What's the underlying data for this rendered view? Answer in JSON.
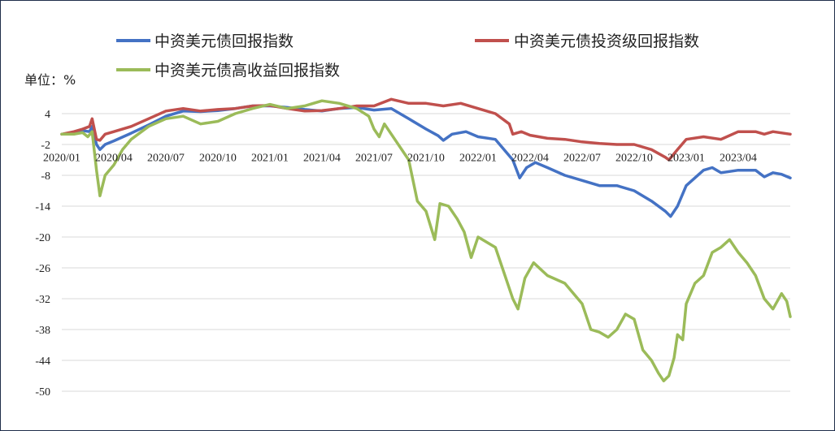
{
  "chart_data": {
    "type": "line",
    "title": "",
    "unit_label": "单位：%",
    "ylim": [
      -50,
      4
    ],
    "yticks": [
      4,
      -2,
      -8,
      -14,
      -20,
      -26,
      -32,
      -38,
      -44,
      -50
    ],
    "ytick_labels": [
      "4",
      "-2",
      "-8",
      "-14",
      "-20",
      "-26",
      "-32",
      "-38",
      "-44",
      "-50"
    ],
    "xlim": [
      "2020-01",
      "2023-06"
    ],
    "xtick_labels": [
      "2020/01",
      "2020/04",
      "2020/07",
      "2020/10",
      "2021/01",
      "2021/04",
      "2021/07",
      "2021/10",
      "2022/01",
      "2022/04",
      "2022/07",
      "2022/10",
      "2023/01",
      "2023/04"
    ],
    "xtick_positions": [
      0,
      3,
      6,
      9,
      12,
      15,
      18,
      21,
      24,
      27,
      30,
      33,
      36,
      39
    ],
    "x_end": 42,
    "grid": true,
    "legend_position": "top",
    "series": [
      {
        "name": "中资美元债回报指数",
        "color": "#4472c4",
        "points": [
          [
            0,
            0
          ],
          [
            0.7,
            0.3
          ],
          [
            1.2,
            0.7
          ],
          [
            1.6,
            0.5
          ],
          [
            1.75,
            1.5
          ],
          [
            2.0,
            -2.0
          ],
          [
            2.2,
            -3.0
          ],
          [
            2.5,
            -2.0
          ],
          [
            3.0,
            -1.3
          ],
          [
            4.0,
            0.2
          ],
          [
            5.0,
            1.8
          ],
          [
            6.0,
            3.5
          ],
          [
            7.0,
            4.5
          ],
          [
            8.0,
            4.4
          ],
          [
            9.0,
            4.6
          ],
          [
            10.0,
            5.0
          ],
          [
            11.0,
            5.5
          ],
          [
            12.0,
            5.5
          ],
          [
            13.0,
            5.2
          ],
          [
            14.0,
            4.8
          ],
          [
            15.0,
            4.5
          ],
          [
            16.0,
            5.0
          ],
          [
            17.0,
            5.2
          ],
          [
            18.0,
            4.7
          ],
          [
            19.0,
            5.0
          ],
          [
            20.0,
            3.0
          ],
          [
            21.0,
            1.0
          ],
          [
            21.7,
            -0.3
          ],
          [
            22.0,
            -1.2
          ],
          [
            22.5,
            0.0
          ],
          [
            23.3,
            0.5
          ],
          [
            24.0,
            -0.5
          ],
          [
            25.0,
            -1.0
          ],
          [
            26.0,
            -5.0
          ],
          [
            26.4,
            -8.5
          ],
          [
            26.8,
            -6.5
          ],
          [
            27.3,
            -5.5
          ],
          [
            28.0,
            -6.5
          ],
          [
            29.0,
            -8.0
          ],
          [
            30.0,
            -9.0
          ],
          [
            31.0,
            -10.0
          ],
          [
            32.0,
            -10.0
          ],
          [
            33.0,
            -11.0
          ],
          [
            34.0,
            -13.0
          ],
          [
            34.8,
            -15.0
          ],
          [
            35.1,
            -16.0
          ],
          [
            35.5,
            -14.0
          ],
          [
            36.0,
            -10.0
          ],
          [
            37.0,
            -7.0
          ],
          [
            37.5,
            -6.5
          ],
          [
            38.0,
            -7.5
          ],
          [
            39.0,
            -7.0
          ],
          [
            40.0,
            -7.0
          ],
          [
            40.5,
            -8.3
          ],
          [
            41.0,
            -7.5
          ],
          [
            41.5,
            -7.8
          ],
          [
            42.0,
            -8.5
          ]
        ]
      },
      {
        "name": "中资美元债投资级回报指数",
        "color": "#c0504d",
        "points": [
          [
            0,
            0
          ],
          [
            0.7,
            0.5
          ],
          [
            1.2,
            1.0
          ],
          [
            1.6,
            1.5
          ],
          [
            1.75,
            3.0
          ],
          [
            2.0,
            -1.0
          ],
          [
            2.2,
            -1.2
          ],
          [
            2.5,
            0.0
          ],
          [
            3.0,
            0.5
          ],
          [
            4.0,
            1.5
          ],
          [
            5.0,
            3.0
          ],
          [
            6.0,
            4.5
          ],
          [
            7.0,
            5.0
          ],
          [
            8.0,
            4.5
          ],
          [
            9.0,
            4.8
          ],
          [
            10.0,
            5.0
          ],
          [
            11.0,
            5.5
          ],
          [
            12.0,
            5.6
          ],
          [
            13.0,
            5.0
          ],
          [
            14.0,
            4.5
          ],
          [
            15.0,
            4.6
          ],
          [
            16.0,
            5.0
          ],
          [
            17.0,
            5.5
          ],
          [
            18.0,
            5.5
          ],
          [
            19.0,
            6.8
          ],
          [
            20.0,
            6.0
          ],
          [
            21.0,
            6.0
          ],
          [
            22.0,
            5.5
          ],
          [
            23.0,
            6.0
          ],
          [
            24.0,
            5.0
          ],
          [
            25.0,
            4.0
          ],
          [
            25.8,
            2.0
          ],
          [
            26.0,
            0.0
          ],
          [
            26.5,
            0.5
          ],
          [
            27.0,
            -0.2
          ],
          [
            28.0,
            -0.8
          ],
          [
            29.0,
            -1.0
          ],
          [
            30.0,
            -1.5
          ],
          [
            31.0,
            -1.8
          ],
          [
            32.0,
            -2.0
          ],
          [
            33.0,
            -2.0
          ],
          [
            34.0,
            -3.0
          ],
          [
            34.8,
            -4.5
          ],
          [
            35.0,
            -5.0
          ],
          [
            35.5,
            -3.0
          ],
          [
            36.0,
            -1.0
          ],
          [
            37.0,
            -0.5
          ],
          [
            38.0,
            -1.0
          ],
          [
            39.0,
            0.5
          ],
          [
            40.0,
            0.5
          ],
          [
            40.5,
            0.0
          ],
          [
            41.0,
            0.5
          ],
          [
            42.0,
            0.0
          ]
        ]
      },
      {
        "name": "中资美元债高收益回报指数",
        "color": "#9bbb59",
        "points": [
          [
            0,
            0
          ],
          [
            0.7,
            0.0
          ],
          [
            1.2,
            0.3
          ],
          [
            1.5,
            -0.5
          ],
          [
            1.75,
            0.5
          ],
          [
            2.0,
            -7.0
          ],
          [
            2.2,
            -12.0
          ],
          [
            2.5,
            -8.0
          ],
          [
            3.0,
            -6.0
          ],
          [
            3.5,
            -3.0
          ],
          [
            4.0,
            -1.0
          ],
          [
            5.0,
            1.5
          ],
          [
            6.0,
            3.0
          ],
          [
            7.0,
            3.5
          ],
          [
            8.0,
            2.0
          ],
          [
            9.0,
            2.5
          ],
          [
            10.0,
            4.0
          ],
          [
            11.0,
            5.0
          ],
          [
            12.0,
            5.8
          ],
          [
            13.0,
            5.0
          ],
          [
            14.0,
            5.5
          ],
          [
            15.0,
            6.5
          ],
          [
            16.0,
            6.0
          ],
          [
            17.0,
            5.0
          ],
          [
            17.7,
            3.5
          ],
          [
            18.0,
            1.0
          ],
          [
            18.3,
            -0.5
          ],
          [
            18.6,
            2.0
          ],
          [
            19.0,
            0.0
          ],
          [
            20.0,
            -5.0
          ],
          [
            20.5,
            -13.0
          ],
          [
            21.0,
            -15.0
          ],
          [
            21.5,
            -20.5
          ],
          [
            21.8,
            -13.5
          ],
          [
            22.3,
            -14.0
          ],
          [
            22.8,
            -16.5
          ],
          [
            23.2,
            -19.0
          ],
          [
            23.6,
            -24.0
          ],
          [
            24.0,
            -20.0
          ],
          [
            25.0,
            -22.0
          ],
          [
            25.5,
            -27.0
          ],
          [
            26.0,
            -32.0
          ],
          [
            26.3,
            -34.0
          ],
          [
            26.7,
            -28.0
          ],
          [
            27.2,
            -25.0
          ],
          [
            28.0,
            -27.5
          ],
          [
            29.0,
            -29.0
          ],
          [
            30.0,
            -33.0
          ],
          [
            30.5,
            -38.0
          ],
          [
            31.0,
            -38.5
          ],
          [
            31.5,
            -39.5
          ],
          [
            32.0,
            -38.0
          ],
          [
            32.5,
            -35.0
          ],
          [
            33.0,
            -36.0
          ],
          [
            33.5,
            -42.0
          ],
          [
            34.0,
            -44.0
          ],
          [
            34.4,
            -46.5
          ],
          [
            34.7,
            -48.0
          ],
          [
            35.0,
            -47.0
          ],
          [
            35.3,
            -43.5
          ],
          [
            35.5,
            -39.0
          ],
          [
            35.8,
            -40.0
          ],
          [
            36.0,
            -33.0
          ],
          [
            36.5,
            -29.0
          ],
          [
            37.0,
            -27.5
          ],
          [
            37.5,
            -23.0
          ],
          [
            38.0,
            -22.0
          ],
          [
            38.5,
            -20.5
          ],
          [
            39.0,
            -23.0
          ],
          [
            39.5,
            -25.0
          ],
          [
            40.0,
            -27.5
          ],
          [
            40.5,
            -32.0
          ],
          [
            41.0,
            -34.0
          ],
          [
            41.5,
            -31.0
          ],
          [
            41.8,
            -32.5
          ],
          [
            42.0,
            -35.5
          ]
        ]
      }
    ]
  }
}
